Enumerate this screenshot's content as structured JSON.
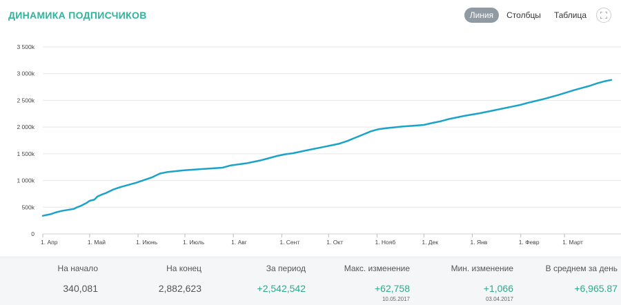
{
  "header": {
    "title": "ДИНАМИКА ПОДПИСЧИКОВ",
    "views": [
      "Линия",
      "Столбцы",
      "Таблица"
    ],
    "active_view": "Линия",
    "fullscreen_icon": "fullscreen-icon"
  },
  "colors": {
    "line": "#1aa3c9",
    "accent": "#2fb39a",
    "grid": "#e6e6e6"
  },
  "chart_data": {
    "type": "line",
    "title": "",
    "xlabel": "",
    "ylabel": "",
    "ylim": [
      0,
      3500000
    ],
    "y_ticks": [
      0,
      500000,
      1000000,
      1500000,
      2000000,
      2500000,
      3000000,
      3500000
    ],
    "y_tick_labels": [
      "0",
      "500k",
      "1 000k",
      "1 500k",
      "2 000k",
      "2 500k",
      "3 000k",
      "3 500k"
    ],
    "x_tick_labels": [
      "1. Апр",
      "1. Май",
      "1. Июнь",
      "1. Июль",
      "1. Авг",
      "1. Сент",
      "1. Окт",
      "1. Нояб",
      "1. Дек",
      "1. Янв",
      "1. Февр",
      "1. Март"
    ],
    "x_tick_days": [
      0,
      30,
      61,
      91,
      122,
      153,
      183,
      214,
      244,
      275,
      306,
      334
    ],
    "xlim_days": [
      0,
      364
    ],
    "grid": true,
    "series": [
      {
        "name": "",
        "x_days": [
          0,
          5,
          8,
          12,
          16,
          20,
          22,
          24,
          28,
          30,
          33,
          35,
          38,
          40,
          45,
          50,
          55,
          60,
          65,
          70,
          75,
          80,
          90,
          100,
          110,
          115,
          120,
          125,
          130,
          135,
          140,
          150,
          155,
          160,
          170,
          180,
          185,
          190,
          195,
          200,
          205,
          210,
          215,
          220,
          230,
          240,
          244,
          250,
          255,
          260,
          270,
          280,
          290,
          300,
          305,
          310,
          320,
          330,
          340,
          345,
          350,
          355,
          360,
          364
        ],
        "y": [
          340081,
          370000,
          400000,
          430000,
          450000,
          470000,
          500000,
          520000,
          580000,
          620000,
          640000,
          700000,
          740000,
          760000,
          830000,
          880000,
          920000,
          960000,
          1010000,
          1060000,
          1130000,
          1160000,
          1190000,
          1210000,
          1230000,
          1240000,
          1280000,
          1300000,
          1320000,
          1350000,
          1380000,
          1460000,
          1490000,
          1510000,
          1570000,
          1630000,
          1660000,
          1690000,
          1740000,
          1800000,
          1860000,
          1920000,
          1960000,
          1980000,
          2010000,
          2030000,
          2040000,
          2080000,
          2110000,
          2150000,
          2210000,
          2260000,
          2320000,
          2380000,
          2410000,
          2450000,
          2520000,
          2600000,
          2690000,
          2730000,
          2770000,
          2820000,
          2860000,
          2882623
        ]
      }
    ]
  },
  "stats": [
    {
      "label": "На начало",
      "value": "340,081",
      "positive": false,
      "date": ""
    },
    {
      "label": "На конец",
      "value": "2,882,623",
      "positive": false,
      "date": ""
    },
    {
      "label": "За период",
      "value": "+2,542,542",
      "positive": true,
      "date": ""
    },
    {
      "label": "Макс. изменение",
      "value": "+62,758",
      "positive": true,
      "date": "10.05.2017"
    },
    {
      "label": "Мин. изменение",
      "value": "+1,066",
      "positive": true,
      "date": "03.04.2017"
    },
    {
      "label": "В среднем за день",
      "value": "+6,965.87",
      "positive": true,
      "date": ""
    }
  ]
}
